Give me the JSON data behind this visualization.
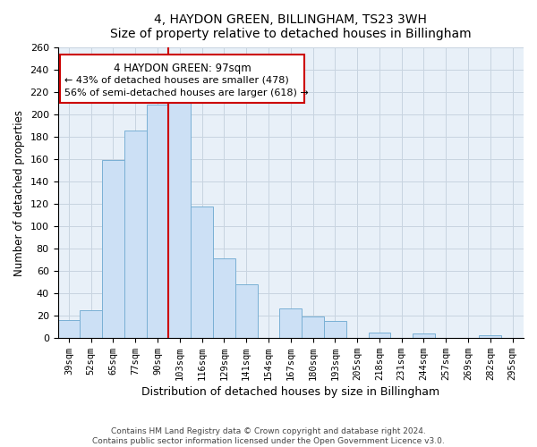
{
  "title": "4, HAYDON GREEN, BILLINGHAM, TS23 3WH",
  "subtitle": "Size of property relative to detached houses in Billingham",
  "xlabel": "Distribution of detached houses by size in Billingham",
  "ylabel": "Number of detached properties",
  "bar_color": "#cce0f5",
  "bar_edge_color": "#7ab0d4",
  "marker_line_color": "#cc0000",
  "marker_value": 97,
  "categories": [
    "39sqm",
    "52sqm",
    "65sqm",
    "77sqm",
    "90sqm",
    "103sqm",
    "116sqm",
    "129sqm",
    "141sqm",
    "154sqm",
    "167sqm",
    "180sqm",
    "193sqm",
    "205sqm",
    "218sqm",
    "231sqm",
    "244sqm",
    "257sqm",
    "269sqm",
    "282sqm",
    "295sqm"
  ],
  "values": [
    16,
    25,
    159,
    186,
    209,
    215,
    118,
    71,
    48,
    0,
    26,
    19,
    15,
    0,
    5,
    0,
    4,
    0,
    0,
    2,
    0
  ],
  "ylim": [
    0,
    260
  ],
  "yticks": [
    0,
    20,
    40,
    60,
    80,
    100,
    120,
    140,
    160,
    180,
    200,
    220,
    240,
    260
  ],
  "annotation_title": "4 HAYDON GREEN: 97sqm",
  "annotation_line1": "← 43% of detached houses are smaller (478)",
  "annotation_line2": "56% of semi-detached houses are larger (618) →",
  "footer1": "Contains HM Land Registry data © Crown copyright and database right 2024.",
  "footer2": "Contains public sector information licensed under the Open Government Licence v3.0.",
  "bg_color": "#ffffff",
  "plot_bg_color": "#e8f0f8",
  "grid_color": "#c8d4e0",
  "ann_box_color": "#cc0000"
}
